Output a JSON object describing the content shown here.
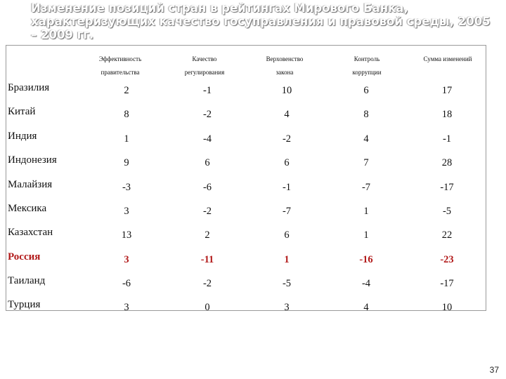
{
  "title": "Изменение позиций стран в рейтингах Мирового Банка, характеризующих качество госуправления и правовой среды, 2005 – 2009 гг.",
  "columns": [
    {
      "line1": "Эффективность",
      "line2": "правительства"
    },
    {
      "line1": "Качество",
      "line2": "регулирования"
    },
    {
      "line1": "Верховенство",
      "line2": "закона"
    },
    {
      "line1": "Контроль",
      "line2": "коррупции"
    },
    {
      "line1": "",
      "line2": "Сумма изменений"
    }
  ],
  "rows": [
    {
      "country": "Бразилия",
      "values": [
        "2",
        "-1",
        "10",
        "6",
        "17"
      ]
    },
    {
      "country": "Китай",
      "values": [
        "8",
        "-2",
        "4",
        "8",
        "18"
      ]
    },
    {
      "country": "Индия",
      "values": [
        "1",
        "-4",
        "-2",
        "4",
        "-1"
      ]
    },
    {
      "country": "Индонезия",
      "values": [
        "9",
        "6",
        "6",
        "7",
        "28"
      ]
    },
    {
      "country": "Малайзия",
      "values": [
        "-3",
        "-6",
        "-1",
        "-7",
        "-17"
      ]
    },
    {
      "country": "Мексика",
      "values": [
        "3",
        "-2",
        "-7",
        "1",
        "-5"
      ]
    },
    {
      "country": "Казахстан",
      "values": [
        "13",
        "2",
        "6",
        "1",
        "22"
      ]
    },
    {
      "country": "Россия",
      "values": [
        "3",
        "-11",
        "1",
        "-16",
        "-23"
      ]
    },
    {
      "country": "Таиланд",
      "values": [
        "-6",
        "-2",
        "-5",
        "-4",
        "-17"
      ]
    },
    {
      "country": "Турция",
      "values": [
        "3",
        "0",
        "3",
        "4",
        "10"
      ]
    }
  ],
  "highlight_color": "#b21b1b",
  "slide_number": "37"
}
